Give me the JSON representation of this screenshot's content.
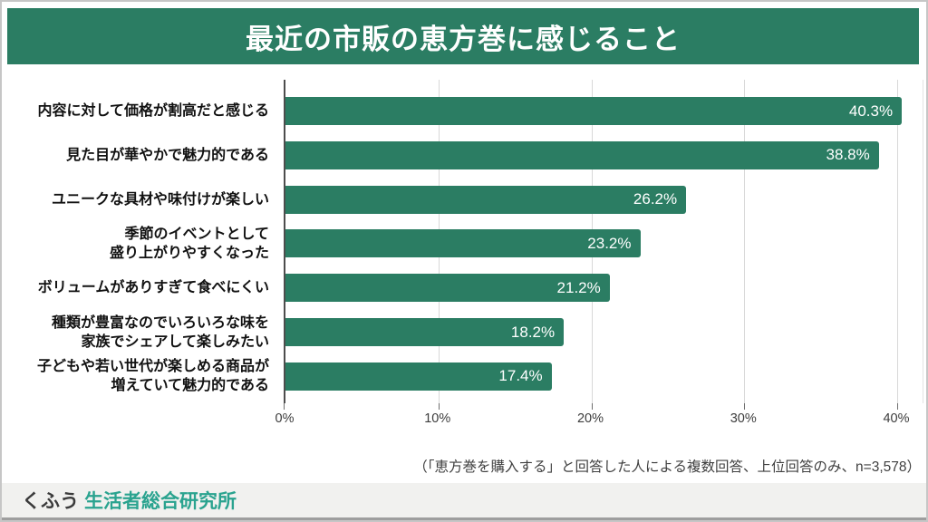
{
  "page": {
    "title": "最近の市販の恵方巻に感じること",
    "footnote": "（「恵方巻を購入する」と回答した人による複数回答、上位回答のみ、n=3,578）"
  },
  "footer": {
    "logo_kufu": "くふう",
    "logo_institute": "生活者総合研究所"
  },
  "colors": {
    "bar_green": "#2B7D63",
    "banner_green": "#2B7D63",
    "logo_teal": "#2AA38F",
    "grid_gray": "#D8D8D8",
    "axis_dark": "#4D4D4D",
    "footer_bg": "#F1F1EF"
  },
  "chart_data": {
    "type": "bar",
    "orientation": "horizontal",
    "title": "最近の市販の恵方巻に感じること",
    "categories": [
      "内容に対して価格が割高だと感じる",
      "見た目が華やかで魅力的である",
      "ユニークな具材や味付けが楽しい",
      "季節のイベントとして\n盛り上がりやすくなった",
      "ボリュームがありすぎて食べにくい",
      "種類が豊富なのでいろいろな味を\n家族でシェアして楽しみたい",
      "子どもや若い世代が楽しめる商品が\n増えていて魅力的である"
    ],
    "values": [
      40.3,
      38.8,
      26.2,
      23.2,
      21.2,
      18.2,
      17.4
    ],
    "value_labels": [
      "40.3%",
      "38.8%",
      "26.2%",
      "23.2%",
      "21.2%",
      "18.2%",
      "17.4%"
    ],
    "x_ticks": [
      "0%",
      "10%",
      "20%",
      "30%",
      "40%"
    ],
    "x_tick_values": [
      0,
      10,
      20,
      30,
      40
    ],
    "xlim": [
      0,
      41.8
    ],
    "grid": true,
    "value_label_position": "inside-end",
    "bar_color": "#2B7D63",
    "value_label_color": "#FFFFFF"
  }
}
